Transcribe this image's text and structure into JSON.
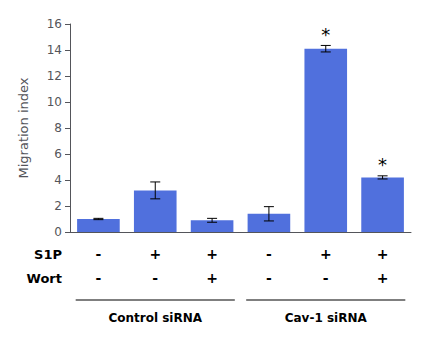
{
  "chart_data": {
    "type": "bar",
    "categories": [
      null,
      null,
      null,
      null,
      null,
      null
    ],
    "values": [
      1.0,
      3.2,
      0.9,
      1.4,
      14.1,
      4.2
    ],
    "errors": [
      0.05,
      0.65,
      0.15,
      0.55,
      0.25,
      0.12
    ],
    "ylim": [
      0,
      16
    ],
    "yticks": [
      0,
      2,
      4,
      6,
      8,
      10,
      12,
      14,
      16
    ],
    "ylabel": "Migration index",
    "grid": false,
    "tick_labels": "y",
    "annotations": [
      {
        "text": "*",
        "index": 4
      },
      {
        "text": "*",
        "index": 5
      }
    ],
    "rows": [
      {
        "label": "S1P",
        "signs": [
          "-",
          "+",
          "+",
          "-",
          "+",
          "+"
        ]
      },
      {
        "label": "Wort",
        "signs": [
          "-",
          "-",
          "+",
          "-",
          "-",
          "+"
        ]
      }
    ],
    "groups": [
      {
        "label": "Control siRNA",
        "size": 3
      },
      {
        "label": "Cav-1 siRNA",
        "size": 3
      }
    ]
  }
}
